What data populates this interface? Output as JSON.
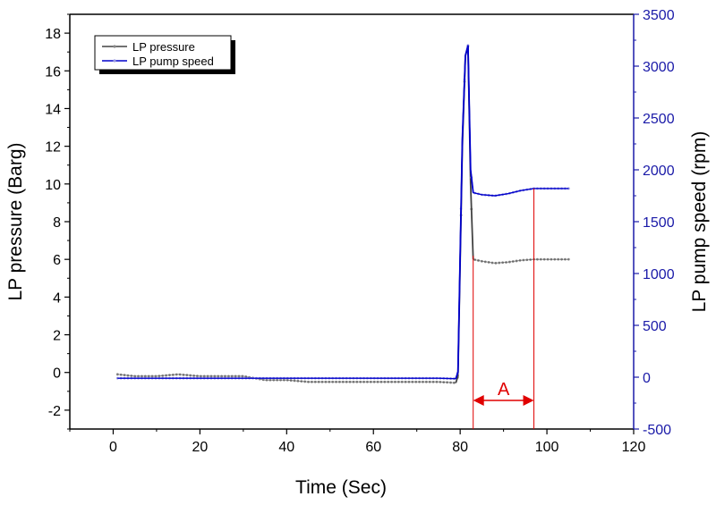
{
  "chart_data": {
    "type": "line",
    "title": "",
    "xlabel": "Time (Sec)",
    "ylabel_left": "LP pressure (Barg)",
    "ylabel_right": "LP pump speed (rpm)",
    "xlim": [
      -10,
      120
    ],
    "ylim_left": [
      -3,
      19
    ],
    "ylim_right": [
      -500,
      3500
    ],
    "x_ticks": [
      0,
      20,
      40,
      60,
      80,
      100,
      120
    ],
    "y_left_ticks": [
      -2,
      0,
      2,
      4,
      6,
      8,
      10,
      12,
      14,
      16,
      18
    ],
    "y_right_ticks": [
      -500,
      0,
      500,
      1000,
      1500,
      2000,
      2500,
      3000,
      3500
    ],
    "legend_position": "top-left",
    "grid": false,
    "colors": {
      "pressure": "#444444",
      "pressure_markers": "#888888",
      "speed": "#0000cc",
      "speed_markers": "#9999e0",
      "right_axis": "#1a1aa8",
      "annotation": "#e00000"
    },
    "series": [
      {
        "name": "LP pressure",
        "axis": "left",
        "x": [
          1,
          5,
          10,
          15,
          20,
          25,
          30,
          35,
          40,
          45,
          50,
          55,
          60,
          65,
          70,
          75,
          79,
          79.5,
          80.5,
          81.2,
          81.8,
          82.4,
          83,
          85,
          88,
          91,
          94,
          97,
          100,
          103,
          105
        ],
        "y": [
          -0.1,
          -0.2,
          -0.2,
          -0.1,
          -0.2,
          -0.2,
          -0.2,
          -0.4,
          -0.4,
          -0.5,
          -0.5,
          -0.5,
          -0.5,
          -0.5,
          -0.5,
          -0.5,
          -0.55,
          -0.2,
          12,
          16.8,
          17.3,
          10,
          6.0,
          5.9,
          5.8,
          5.85,
          5.95,
          6.0,
          6.0,
          6.0,
          6.0
        ]
      },
      {
        "name": "LP pump speed",
        "axis": "right",
        "x": [
          1,
          5,
          10,
          15,
          20,
          25,
          30,
          35,
          40,
          45,
          50,
          55,
          60,
          65,
          70,
          75,
          79,
          79.5,
          80.5,
          81.2,
          81.8,
          82.4,
          83,
          85,
          88,
          91,
          94,
          97,
          100,
          103,
          105
        ],
        "y": [
          -10,
          -10,
          -10,
          -10,
          -10,
          -10,
          -10,
          -10,
          -10,
          -10,
          -10,
          -10,
          -10,
          -10,
          -10,
          -10,
          -15,
          50,
          2300,
          3100,
          3200,
          2000,
          1780,
          1760,
          1750,
          1770,
          1800,
          1820,
          1820,
          1820,
          1820
        ]
      }
    ],
    "annotation": {
      "label": "A",
      "x_start": 83,
      "x_end": 97
    }
  }
}
